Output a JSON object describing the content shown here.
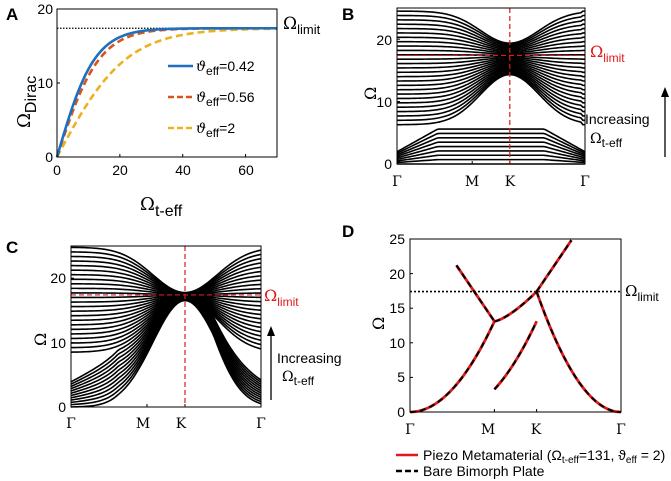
{
  "chart_data": [
    {
      "panel": "A",
      "type": "line",
      "xlabel": "Ω",
      "xlabel_sub": "t-eff",
      "ylabel": "Ω",
      "ylabel_sub": "Dirac",
      "xlim": [
        0,
        70
      ],
      "ylim": [
        0,
        20
      ],
      "x_ticks": [
        "0",
        "20",
        "40",
        "60"
      ],
      "y_ticks": [
        "0",
        "10",
        "20"
      ],
      "limit_label": "Ω",
      "limit_sub": "limit",
      "omega_limit": 17.4,
      "series": [
        {
          "name": "ϑeff=0.42",
          "label_main": "ϑ",
          "label_sub": "eff",
          "label_val": "=0.42",
          "color": "#1f6fbf",
          "style": "solid",
          "scale": 12,
          "x": [
            0,
            5,
            10,
            15,
            20,
            25,
            30,
            35,
            40,
            45,
            50,
            55,
            60,
            65,
            70
          ],
          "y": [
            0,
            5.8,
            10.2,
            13.5,
            15.4,
            16.3,
            16.8,
            17.05,
            17.2,
            17.27,
            17.31,
            17.34,
            17.36,
            17.37,
            17.38
          ]
        },
        {
          "name": "ϑeff=0.56",
          "label_main": "ϑ",
          "label_sub": "eff",
          "label_val": "=0.56",
          "color": "#d9541a",
          "style": "dashed",
          "scale": 13.5,
          "x": [
            0,
            5,
            10,
            15,
            20,
            25,
            30,
            35,
            40,
            45,
            50,
            55,
            60,
            65,
            70
          ],
          "y": [
            0,
            5.4,
            9.6,
            12.8,
            14.8,
            15.9,
            16.5,
            16.85,
            17.05,
            17.17,
            17.24,
            17.29,
            17.32,
            17.34,
            17.36
          ]
        },
        {
          "name": "ϑeff=2",
          "label_main": "ϑ",
          "label_sub": "eff",
          "label_val": "=2",
          "color": "#edb120",
          "style": "dashed",
          "scale": 22,
          "x": [
            0,
            5,
            10,
            15,
            20,
            25,
            30,
            35,
            40,
            45,
            50,
            55,
            60,
            65,
            70
          ],
          "y": [
            0,
            3.8,
            7.2,
            10,
            12.2,
            13.8,
            14.9,
            15.6,
            16.1,
            16.45,
            16.7,
            16.85,
            16.97,
            17.05,
            17.1
          ]
        }
      ]
    },
    {
      "panel": "B",
      "type": "line",
      "description_kind": "dispersion bands",
      "ylabel": "Ω",
      "ylim": [
        0,
        25
      ],
      "y_ticks": [
        "0",
        "10",
        "20"
      ],
      "x_ticks": [
        "Γ",
        "M",
        "K",
        "Γ"
      ],
      "x_positions": [
        0,
        1,
        1.5,
        2.5
      ],
      "limit_label": "Ω",
      "limit_sub": "limit",
      "omega_limit": 17.4,
      "annotation_main": "Increasing",
      "annotation_sym": "Ω",
      "annotation_sub": "t-eff",
      "n_bands": 36
    },
    {
      "panel": "C",
      "type": "line",
      "description_kind": "dispersion bands",
      "ylabel": "Ω",
      "ylim": [
        0,
        25
      ],
      "y_ticks": [
        "0",
        "10",
        "20"
      ],
      "x_ticks": [
        "Γ",
        "M",
        "K",
        "Γ"
      ],
      "x_positions": [
        0,
        1,
        1.5,
        2.5
      ],
      "limit_label": "Ω",
      "limit_sub": "limit",
      "omega_limit": 17.4,
      "annotation_main": "Increasing",
      "annotation_sym": "Ω",
      "annotation_sub": "t-eff",
      "n_bands": 36
    },
    {
      "panel": "D",
      "type": "line",
      "ylabel": "Ω",
      "ylim": [
        0,
        25
      ],
      "y_ticks": [
        "0",
        "5",
        "10",
        "15",
        "20",
        "25"
      ],
      "x_ticks": [
        "Γ",
        "M",
        "K",
        "Γ"
      ],
      "x_positions": [
        0,
        1,
        1.5,
        2.5
      ],
      "limit_label": "Ω",
      "limit_sub": "limit",
      "omega_limit": 17.4,
      "series": [
        {
          "name": "Piezo Metamaterial",
          "color": "#e0191b",
          "style": "solid"
        },
        {
          "name": "Bare Bimorph Plate",
          "color": "#000000",
          "style": "dashed"
        }
      ],
      "legend": {
        "piezo_main": "Piezo Metamaterial (Ω",
        "piezo_sub1": "t-eff",
        "piezo_mid": "=131, ϑ",
        "piezo_sub2": "eff",
        "piezo_end": " = 2)",
        "bare": "Bare Bimorph Plate"
      }
    }
  ]
}
